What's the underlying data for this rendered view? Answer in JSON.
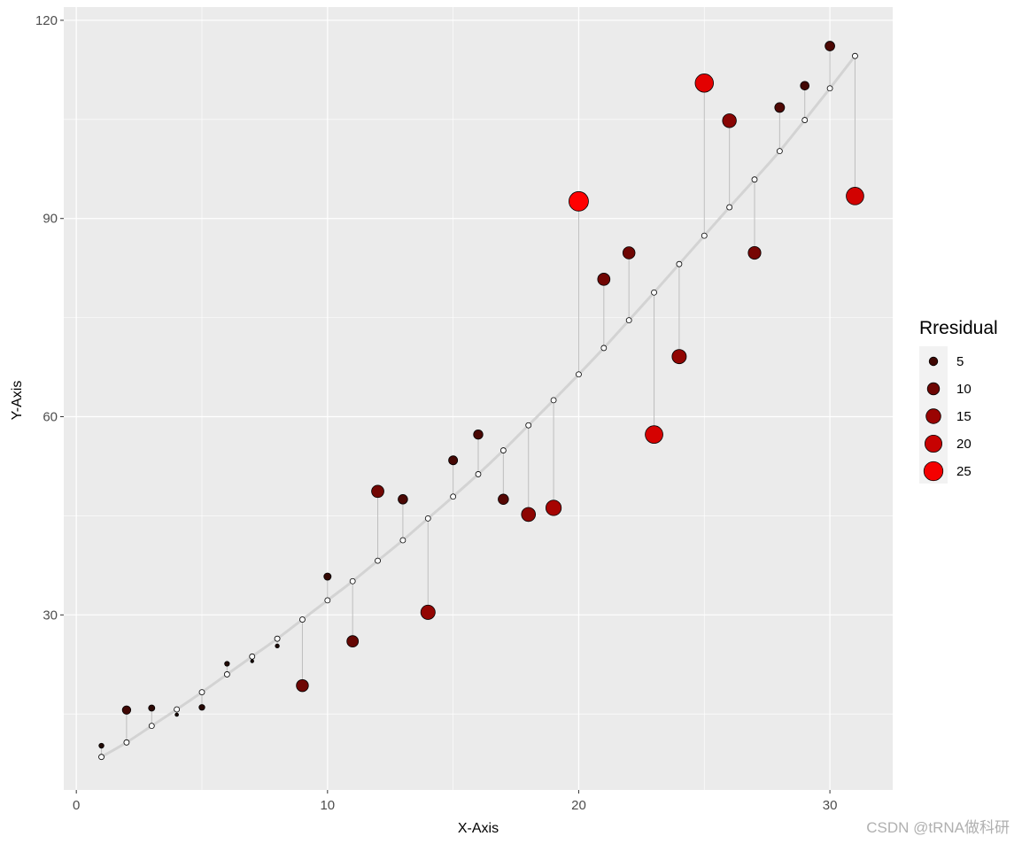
{
  "chart_data": {
    "type": "scatter",
    "xlabel": "X-Axis",
    "ylabel": "Y-Axis",
    "xlim": [
      -0.5,
      32.5
    ],
    "ylim": [
      3.5,
      122
    ],
    "x_ticks": [
      0,
      10,
      20,
      30
    ],
    "y_ticks": [
      30,
      60,
      90,
      120
    ],
    "grid": true,
    "legend_position": "right",
    "legend": {
      "title": "Rresidual",
      "entries": [
        {
          "label": "5",
          "value": 5
        },
        {
          "label": "10",
          "value": 10
        },
        {
          "label": "15",
          "value": 15
        },
        {
          "label": "20",
          "value": 20
        },
        {
          "label": "25",
          "value": 25
        }
      ]
    },
    "colors": {
      "panel_bg": "#ebebeb",
      "grid": "#ffffff",
      "fit_line": "#d3d3d3",
      "segment": "#bebebe",
      "low_residual": "#1a0a05",
      "high_residual": "#ff0000"
    },
    "x": [
      1,
      2,
      3,
      4,
      5,
      6,
      7,
      8,
      9,
      10,
      11,
      12,
      13,
      14,
      15,
      16,
      17,
      18,
      19,
      20,
      21,
      22,
      23,
      24,
      25,
      26,
      27,
      28,
      29,
      30,
      31
    ],
    "observed": [
      10.2,
      15.6,
      15.9,
      14.9,
      16.0,
      22.6,
      23.0,
      25.3,
      19.3,
      35.8,
      26.0,
      48.7,
      47.5,
      30.4,
      53.4,
      57.3,
      47.5,
      45.2,
      46.2,
      92.6,
      80.8,
      84.8,
      57.3,
      69.1,
      110.5,
      104.8,
      84.8,
      106.8,
      110.1,
      116.1,
      93.4
    ],
    "predicted": [
      8.5,
      10.7,
      13.2,
      15.7,
      18.3,
      21.0,
      23.7,
      26.4,
      29.3,
      32.2,
      35.1,
      38.2,
      41.3,
      44.6,
      47.9,
      51.3,
      54.9,
      58.7,
      62.5,
      66.4,
      70.4,
      74.6,
      78.8,
      83.1,
      87.4,
      91.7,
      95.9,
      100.2,
      104.9,
      109.7,
      114.6
    ],
    "residual_abs": [
      1.7,
      4.9,
      2.7,
      0.8,
      2.3,
      1.6,
      0.7,
      1.1,
      10.0,
      3.6,
      9.1,
      10.5,
      6.2,
      14.2,
      5.5,
      6.0,
      7.4,
      13.5,
      16.3,
      26.2,
      10.4,
      10.2,
      21.5,
      14.0,
      23.1,
      13.1,
      11.1,
      6.6,
      5.2,
      6.4,
      21.2
    ]
  },
  "watermark": "CSDN @tRNA做科研"
}
